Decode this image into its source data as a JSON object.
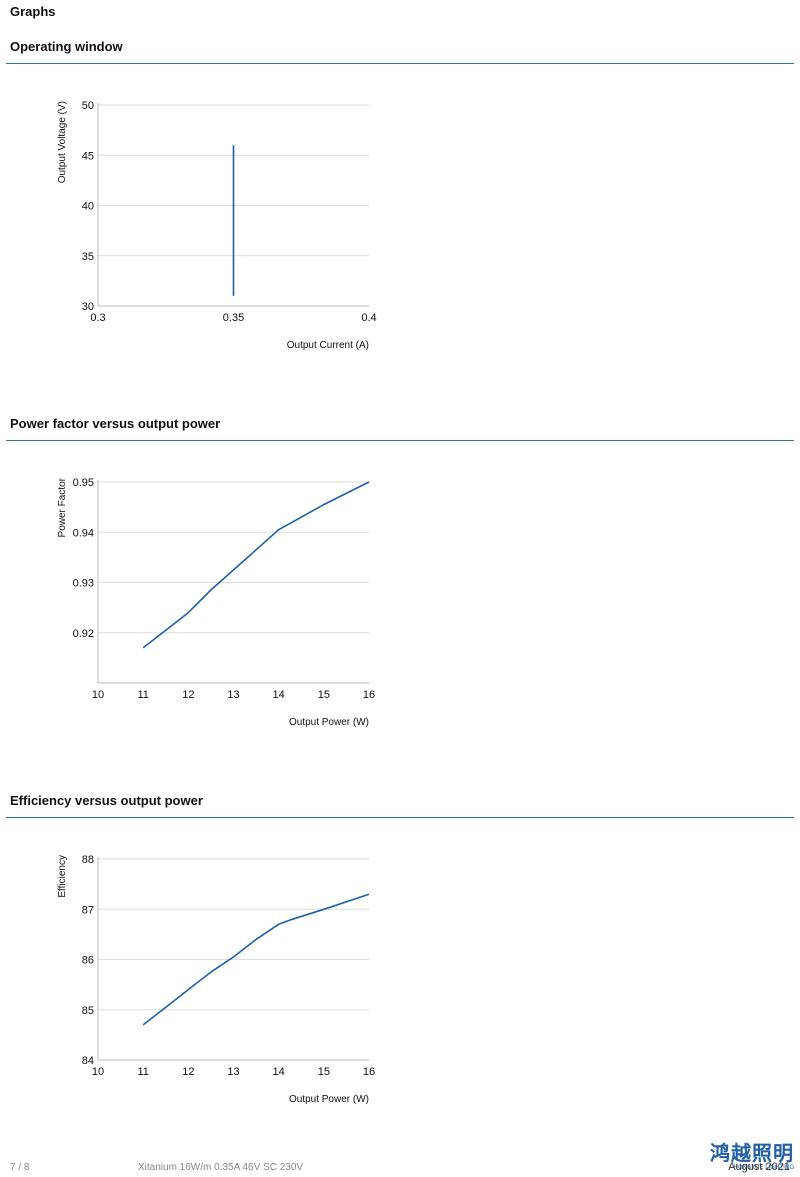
{
  "page": {
    "title": "Graphs"
  },
  "sections": [
    {
      "title": "Operating window"
    },
    {
      "title": "Power factor versus output power"
    },
    {
      "title": "Efficiency versus output power"
    }
  ],
  "chart_data": [
    {
      "type": "line",
      "title": "Operating window",
      "xlabel": "Output Current (A)",
      "ylabel": "Output Voltage (V)",
      "xlim": [
        0.3,
        0.4
      ],
      "ylim": [
        30,
        50
      ],
      "xticks": [
        0.3,
        0.35,
        0.4
      ],
      "yticks": [
        30,
        35,
        40,
        45,
        50
      ],
      "xtick_labels": [
        "0.3",
        "0.35",
        "0.4"
      ],
      "ytick_labels": [
        "30",
        "35",
        "40",
        "45",
        "50"
      ],
      "grid": "horizontal",
      "series": [
        {
          "x": [
            0.35,
            0.35
          ],
          "y": [
            31,
            46
          ]
        }
      ]
    },
    {
      "type": "line",
      "title": "Power factor versus output power",
      "xlabel": "Output Power (W)",
      "ylabel": "Power Factor",
      "xlim": [
        10,
        16
      ],
      "ylim": [
        0.91,
        0.95
      ],
      "xticks": [
        10,
        11,
        12,
        13,
        14,
        15,
        16
      ],
      "yticks": [
        0.92,
        0.93,
        0.94,
        0.95
      ],
      "xtick_labels": [
        "10",
        "11",
        "12",
        "13",
        "14",
        "15",
        "16"
      ],
      "ytick_labels": [
        "0.92",
        "0.93",
        "0.94",
        "0.95"
      ],
      "grid": "horizontal",
      "series": [
        {
          "x": [
            11,
            11.5,
            12,
            12.5,
            13,
            13.5,
            14,
            14.3,
            15,
            16
          ],
          "y": [
            0.917,
            0.9205,
            0.924,
            0.9285,
            0.9325,
            0.9365,
            0.9405,
            0.942,
            0.9455,
            0.95
          ]
        }
      ]
    },
    {
      "type": "line",
      "title": "Efficiency versus output power",
      "xlabel": "Output Power (W)",
      "ylabel": "Efficiency",
      "xlim": [
        10,
        16
      ],
      "ylim": [
        84,
        88
      ],
      "xticks": [
        10,
        11,
        12,
        13,
        14,
        15,
        16
      ],
      "yticks": [
        84,
        85,
        86,
        87,
        88
      ],
      "xtick_labels": [
        "10",
        "11",
        "12",
        "13",
        "14",
        "15",
        "16"
      ],
      "ytick_labels": [
        "84",
        "85",
        "86",
        "87",
        "88"
      ],
      "grid": "horizontal",
      "series": [
        {
          "x": [
            11,
            11.5,
            12,
            12.5,
            13,
            13.5,
            14,
            14.3,
            15,
            16
          ],
          "y": [
            84.7,
            85.05,
            85.4,
            85.75,
            86.05,
            86.4,
            86.7,
            86.8,
            87.0,
            87.3
          ]
        }
      ]
    }
  ],
  "footer": {
    "page_number": "7 / 8",
    "product": "Xitanium 16W/m 0.35A 46V SC 230V",
    "date": "August 2021"
  },
  "watermark": {
    "main": "鸿越照明",
    "sub": "HONGYUE LIGHTING"
  },
  "colors": {
    "line": "#1f5fa8",
    "rule": "#2f6fb6",
    "grid": "#dddddd"
  }
}
